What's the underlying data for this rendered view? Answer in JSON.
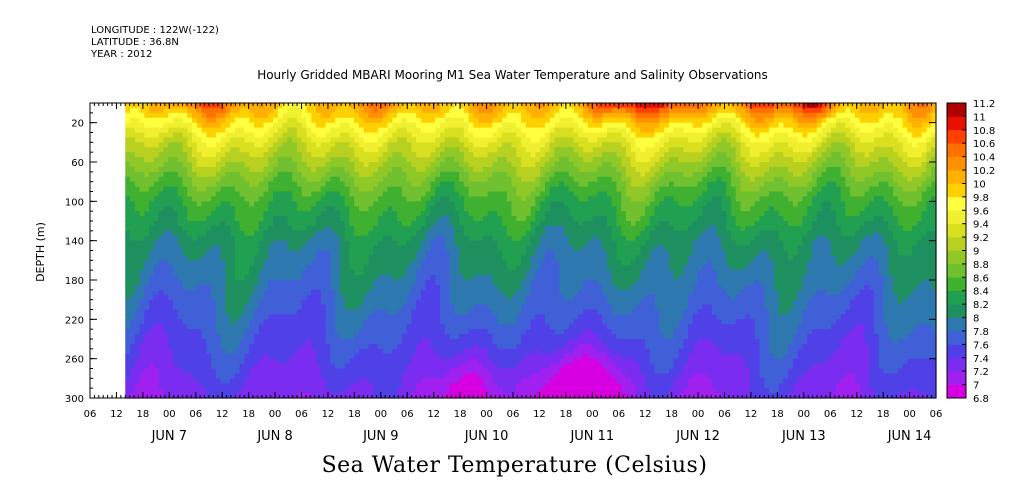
{
  "header": {
    "longitude": "LONGITUDE : 122W(-122)",
    "latitude": "LATITUDE : 36.8N",
    "year": "YEAR : 2012"
  },
  "chart_data": {
    "type": "heatmap",
    "title": "Hourly Gridded MBARI Mooring M1 Sea Water Temperature and Salinity Observations",
    "xlabel": "Sea Water Temperature (Celsius)",
    "ylabel": "DEPTH (m)",
    "x_start": "2012-06-06 06:00",
    "x_end": "2012-06-14 06:00",
    "data_start": "2012-06-06 14:00",
    "hour_ticks": [
      "06",
      "12",
      "18",
      "00",
      "06",
      "12",
      "18",
      "00",
      "06",
      "12",
      "18",
      "00",
      "06",
      "12",
      "18",
      "00",
      "06",
      "12",
      "18",
      "00",
      "06",
      "12",
      "18",
      "00",
      "06",
      "12",
      "18",
      "00",
      "06",
      "12",
      "18",
      "00",
      "06"
    ],
    "day_labels": [
      {
        "label": "JUN  7",
        "at": "2012-06-07 00:00"
      },
      {
        "label": "JUN  8",
        "at": "2012-06-08 00:00"
      },
      {
        "label": "JUN  9",
        "at": "2012-06-09 00:00"
      },
      {
        "label": "JUN 10",
        "at": "2012-06-10 00:00"
      },
      {
        "label": "JUN 11",
        "at": "2012-06-11 00:00"
      },
      {
        "label": "JUN 12",
        "at": "2012-06-12 00:00"
      },
      {
        "label": "JUN 13",
        "at": "2012-06-13 00:00"
      },
      {
        "label": "JUN 14",
        "at": "2012-06-14 00:00"
      }
    ],
    "ylim": [
      300,
      0
    ],
    "y_ticks": [
      20,
      60,
      100,
      140,
      180,
      220,
      260,
      300
    ],
    "colorbar": {
      "levels": [
        "6.8",
        "7",
        "7.2",
        "7.4",
        "7.6",
        "7.8",
        "8",
        "8.2",
        "8.4",
        "8.6",
        "8.8",
        "9",
        "9.2",
        "9.4",
        "9.6",
        "9.8",
        "10",
        "10.2",
        "10.4",
        "10.6",
        "10.8",
        "11",
        "11.2"
      ],
      "colors": [
        "#d600e0",
        "#a020f0",
        "#7a2cf0",
        "#5040e8",
        "#4060d8",
        "#2e78b0",
        "#1e9060",
        "#20a050",
        "#40b030",
        "#70c030",
        "#90c828",
        "#b8d020",
        "#d8e020",
        "#f0f030",
        "#ffff40",
        "#ffd000",
        "#ffb000",
        "#ff9000",
        "#ff7000",
        "#ff4000",
        "#e81000",
        "#b00000"
      ]
    },
    "profile": {
      "depths": [
        5,
        20,
        40,
        60,
        80,
        100,
        120,
        140,
        160,
        180,
        200,
        220,
        240,
        260,
        280,
        300
      ],
      "temps": [
        10.0,
        9.7,
        9.3,
        9.0,
        8.7,
        8.45,
        8.3,
        8.1,
        8.0,
        7.9,
        7.8,
        7.7,
        7.6,
        7.5,
        7.4,
        7.3
      ]
    },
    "warm_events": [
      {
        "time": "2012-06-07 06:00",
        "temp": 10.6
      },
      {
        "time": "2012-06-09 03:00",
        "temp": 10.3
      },
      {
        "time": "2012-06-10 03:00",
        "temp": 10.1
      },
      {
        "time": "2012-06-11 06:00",
        "temp": 10.9
      },
      {
        "time": "2012-06-11 18:00",
        "temp": 10.7
      },
      {
        "time": "2012-06-12 12:00",
        "temp": 10.6
      },
      {
        "time": "2012-06-13 03:00",
        "temp": 10.9
      }
    ],
    "cold_events": [
      {
        "time": "2012-06-09 21:00",
        "temp": 6.9
      },
      {
        "time": "2012-06-10 18:00",
        "temp": 6.8
      },
      {
        "time": "2012-06-11 03:00",
        "temp": 6.9
      }
    ]
  }
}
